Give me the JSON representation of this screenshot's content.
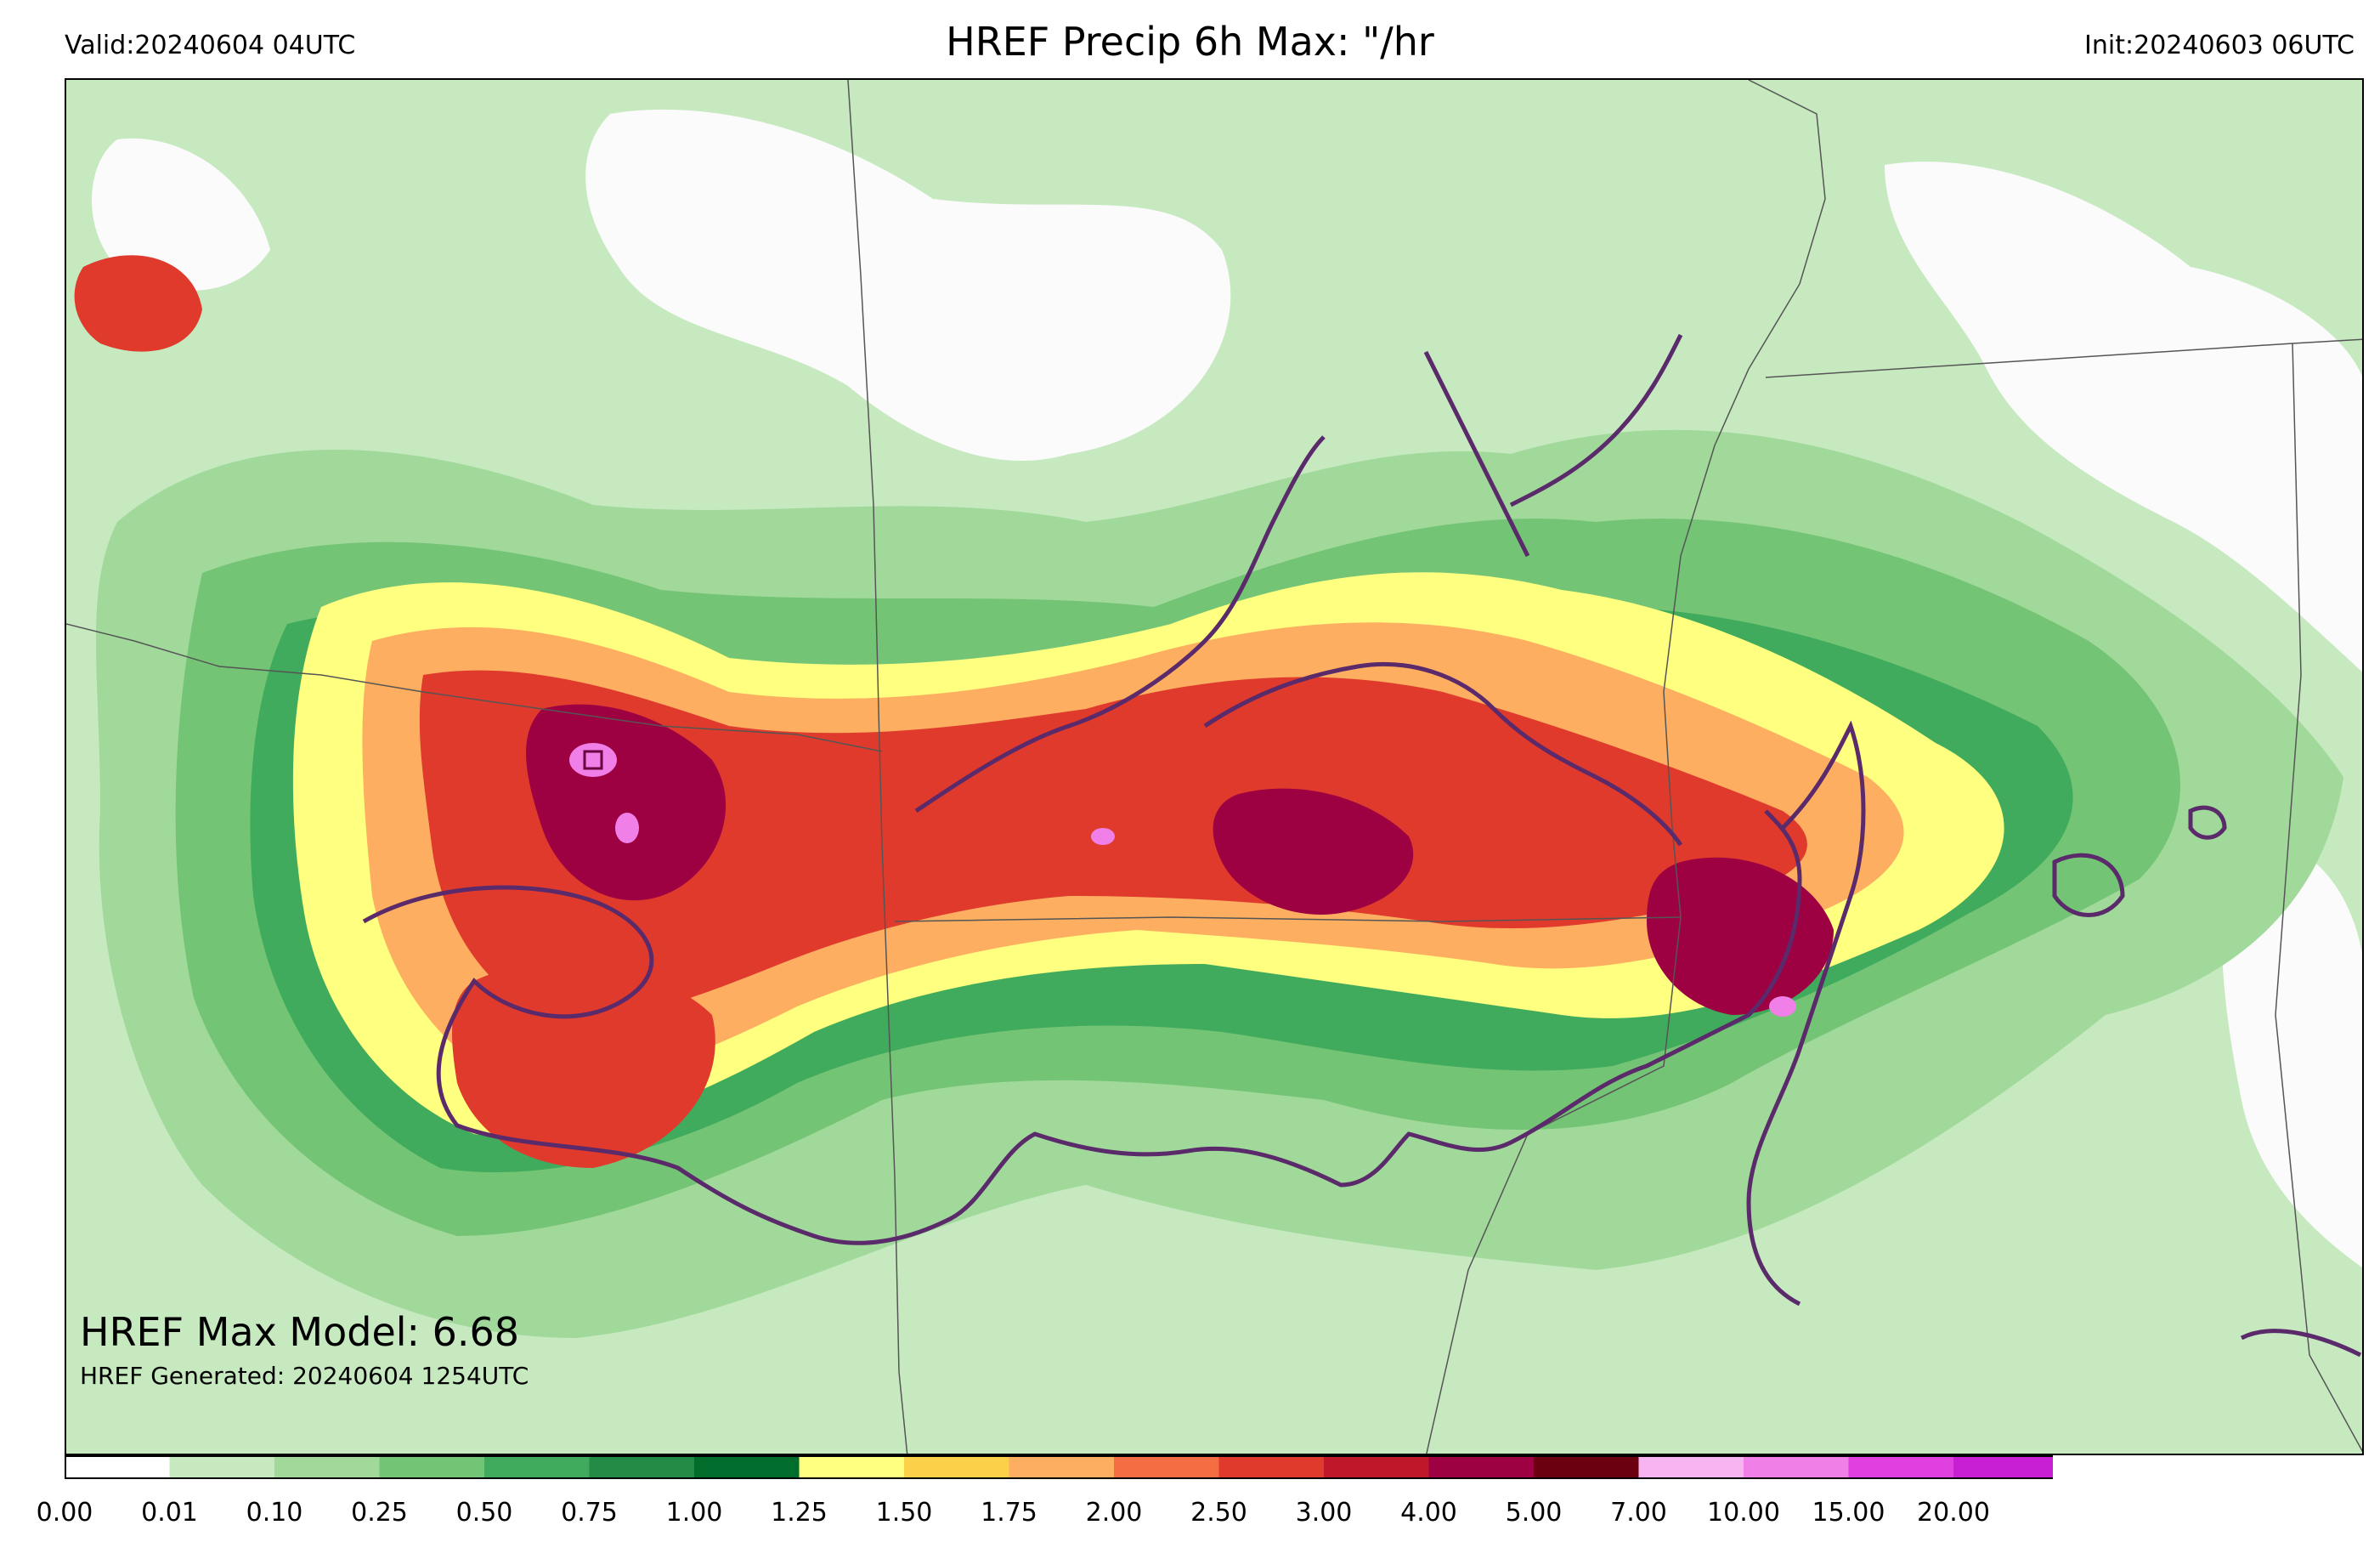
{
  "header": {
    "valid": "Valid:20240604 04UTC",
    "title": "HREF Precip 6h Max: \"/hr",
    "init": "Init:20240603 06UTC"
  },
  "annotations": {
    "max_model": "HREF Max Model: 6.68",
    "generated": "HREF Generated: 20240604 1254UTC"
  },
  "colorbar": {
    "labels": [
      "0.00",
      "0.01",
      "0.10",
      "0.25",
      "0.50",
      "0.75",
      "1.00",
      "1.25",
      "1.50",
      "1.75",
      "2.00",
      "2.50",
      "3.00",
      "4.00",
      "5.00",
      "7.00",
      "10.00",
      "15.00",
      "20.00"
    ],
    "colors": [
      "#ffffff",
      "#c7e9c0",
      "#a1d99b",
      "#74c476",
      "#41ab5d",
      "#238b45",
      "#006d2c",
      "#ffff80",
      "#fdd049",
      "#fdae61",
      "#f46d43",
      "#e03a2d",
      "#c0182a",
      "#9e0142",
      "#6b0010",
      "#f8b4f0",
      "#f080e8",
      "#e040e0",
      "#c81ed4",
      "#8a00b8"
    ],
    "extend": "max"
  },
  "map": {
    "colors": {
      "light_green": "#c7e9c0",
      "green": "#a1d99b",
      "mid_green": "#74c476",
      "dark_green": "#41ab5d",
      "deep_green": "#238b45",
      "yellow": "#ffff80",
      "orange": "#fdae61",
      "red": "#e03a2d",
      "dark_red": "#9e0142",
      "pink": "#f080e8",
      "contour": "#5a2a6a"
    }
  }
}
